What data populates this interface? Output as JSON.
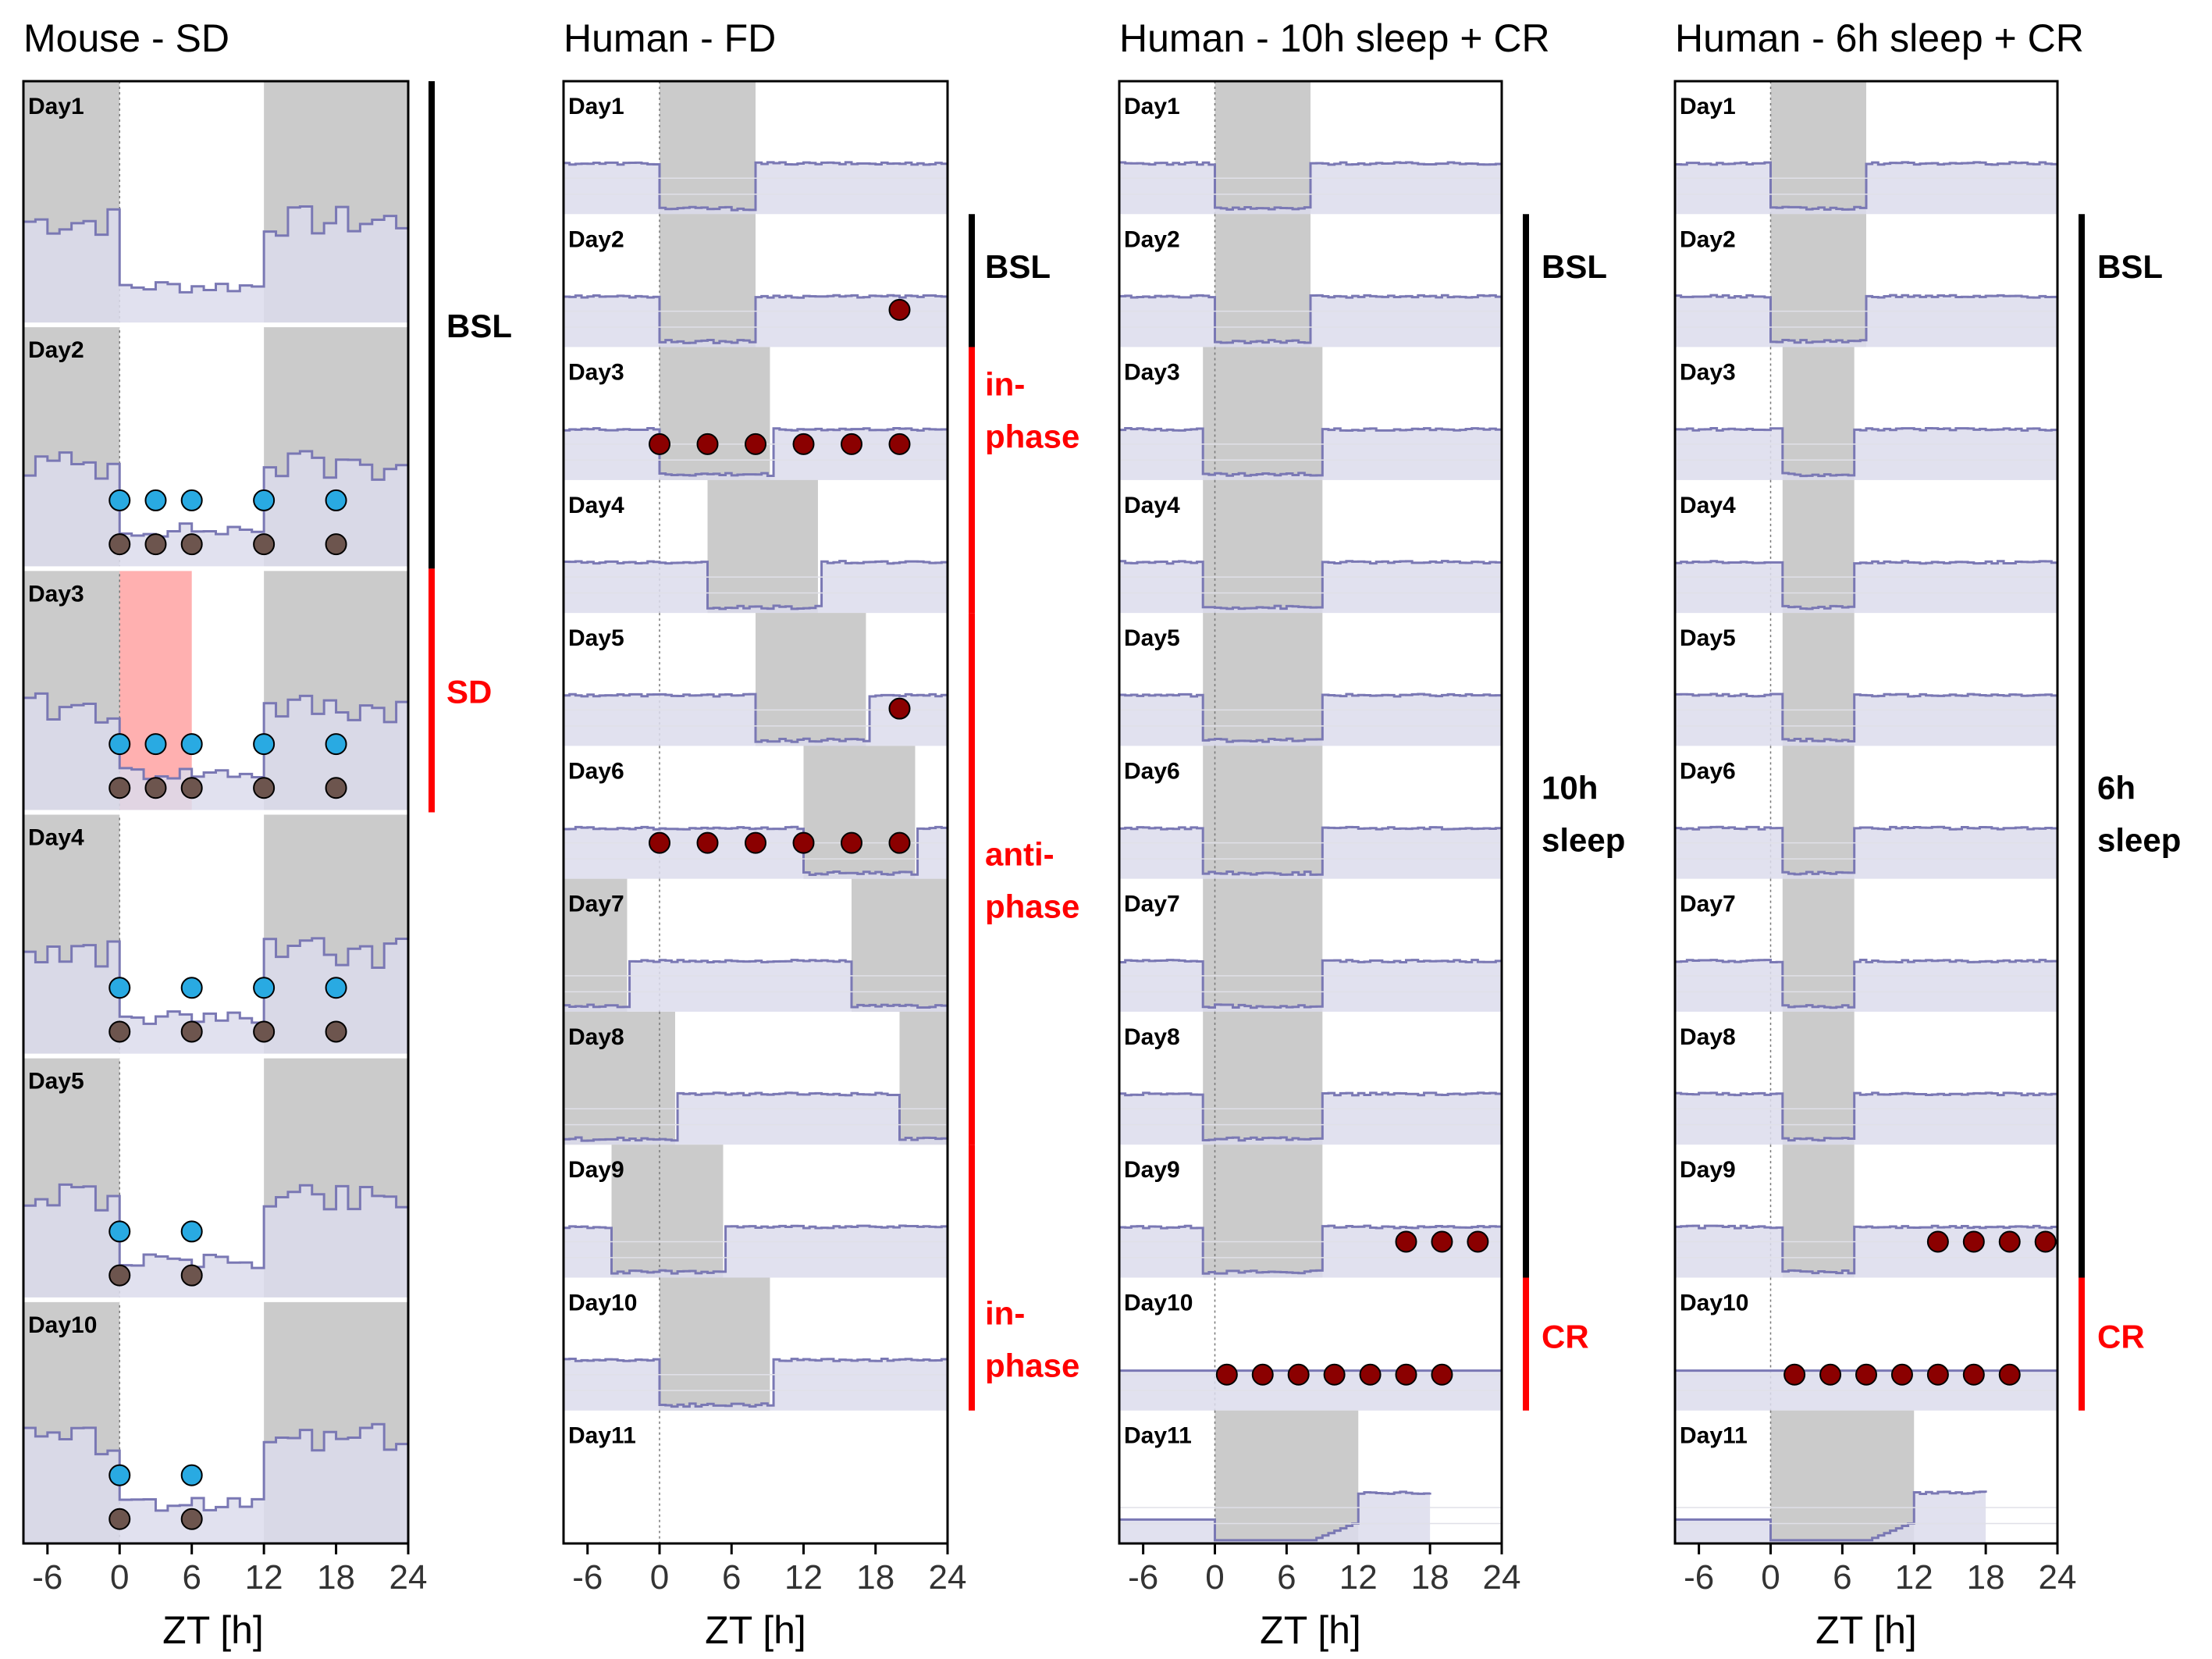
{
  "chart_data": [
    {
      "type": "area",
      "title": "Mouse - SD",
      "xlabel": "ZT [h]",
      "xlim": [
        -8,
        24
      ],
      "x_ticks": [
        "-6",
        "0",
        "6",
        "12",
        "18",
        "24"
      ],
      "rows": [
        {
          "label": "Day1",
          "shade": "[[-8,0],[12,24]]",
          "dots": {
            "blue": [],
            "brown": [],
            "red": []
          }
        },
        {
          "label": "Day2",
          "shade": "[[-8,0],[12,24]]",
          "dots": {
            "blue": [
              0,
              3,
              6,
              12,
              18
            ],
            "brown": [
              0,
              3,
              6,
              12,
              18
            ],
            "red": []
          }
        },
        {
          "label": "Day3",
          "shade": "[[-8,0],[12,24]]",
          "sd_window": [
            0,
            6
          ],
          "dots": {
            "blue": [
              0,
              3,
              6,
              12,
              18
            ],
            "brown": [
              0,
              3,
              6,
              12,
              18
            ],
            "red": []
          }
        },
        {
          "label": "Day4",
          "shade": "[[-8,0],[12,24]]",
          "dots": {
            "blue": [
              0,
              6,
              12,
              18
            ],
            "brown": [
              0,
              6,
              12,
              18
            ],
            "red": []
          }
        },
        {
          "label": "Day5",
          "shade": "[[-8,0],[12,24]]",
          "dots": {
            "blue": [
              0,
              6
            ],
            "brown": [
              0,
              6
            ],
            "red": []
          }
        },
        {
          "label": "Day10",
          "shade": "[[-8,0],[12,24]]",
          "dots": {
            "blue": [
              0,
              6
            ],
            "brown": [
              0,
              6
            ],
            "red": []
          }
        }
      ],
      "phases": [
        {
          "label": "BSL",
          "color": "#000000",
          "from_row": 0,
          "to_row": 2
        },
        {
          "label": "SD",
          "color": "#ff0000",
          "from_row": 2,
          "to_row": 3
        }
      ]
    },
    {
      "type": "area",
      "title": "Human - FD",
      "xlabel": "ZT [h]",
      "xlim": [
        -8,
        24
      ],
      "x_ticks": [
        "-6",
        "0",
        "6",
        "12",
        "18",
        "24"
      ],
      "rows": [
        {
          "label": "Day1",
          "shade": "[[0,8]]",
          "dots": {
            "blue": [],
            "brown": [],
            "red": []
          }
        },
        {
          "label": "Day2",
          "shade": "[[0,8]]",
          "dots": {
            "blue": [],
            "brown": [],
            "red": [
              20
            ]
          }
        },
        {
          "label": "Day3",
          "shade": "[[0,9.2]]",
          "dots": {
            "blue": [],
            "brown": [],
            "red": [
              0,
              4,
              8,
              12,
              16,
              20
            ]
          }
        },
        {
          "label": "Day4",
          "shade": "[[4,13.2]]",
          "dots": {
            "blue": [],
            "brown": [],
            "red": []
          }
        },
        {
          "label": "Day5",
          "shade": "[[8,17.2]]",
          "dots": {
            "blue": [],
            "brown": [],
            "red": [
              20
            ]
          }
        },
        {
          "label": "Day6",
          "shade": "[[12,21.3]]",
          "dots": {
            "blue": [],
            "brown": [],
            "red": [
              0,
              4,
              8,
              12,
              16,
              20
            ]
          }
        },
        {
          "label": "Day7",
          "shade": "[[-8,-2.7],[16,24]]",
          "dots": {
            "blue": [],
            "brown": [],
            "red": []
          }
        },
        {
          "label": "Day8",
          "shade": "[[-8,1.3],[20,24]]",
          "dots": {
            "blue": [],
            "brown": [],
            "red": []
          }
        },
        {
          "label": "Day9",
          "shade": "[[-4,5.3]]",
          "dots": {
            "blue": [],
            "brown": [],
            "red": []
          }
        },
        {
          "label": "Day10",
          "shade": "[[0,9.2]]",
          "dots": {
            "blue": [],
            "brown": [],
            "red": []
          }
        },
        {
          "label": "Day11",
          "shade": "[]",
          "dots": {
            "blue": [],
            "brown": [],
            "red": []
          }
        }
      ],
      "phases": [
        {
          "label": "BSL",
          "color": "#000000",
          "from_row": 1,
          "to_row": 2
        },
        {
          "label": "in-\nphase",
          "color": "#ff0000",
          "from_row": 2,
          "to_row": 4
        },
        {
          "label": "anti-\nphase",
          "color": "#ff0000",
          "from_row": 4,
          "to_row": 8
        },
        {
          "label": "in-\nphase",
          "color": "#ff0000",
          "from_row": 8,
          "to_row": 10
        }
      ]
    },
    {
      "type": "area",
      "title": "Human - 10h sleep + CR",
      "xlabel": "ZT [h]",
      "xlim": [
        -8,
        24
      ],
      "x_ticks": [
        "-6",
        "0",
        "6",
        "12",
        "18",
        "24"
      ],
      "rows": [
        {
          "label": "Day1",
          "shade": "[[0,8]]",
          "dots": {
            "blue": [],
            "brown": [],
            "red": []
          }
        },
        {
          "label": "Day2",
          "shade": "[[0,8]]",
          "dots": {
            "blue": [],
            "brown": [],
            "red": []
          }
        },
        {
          "label": "Day3",
          "shade": "[[-1,9]]",
          "dots": {
            "blue": [],
            "brown": [],
            "red": []
          }
        },
        {
          "label": "Day4",
          "shade": "[[-1,9]]",
          "dots": {
            "blue": [],
            "brown": [],
            "red": []
          }
        },
        {
          "label": "Day5",
          "shade": "[[-1,9]]",
          "dots": {
            "blue": [],
            "brown": [],
            "red": []
          }
        },
        {
          "label": "Day6",
          "shade": "[[-1,9]]",
          "dots": {
            "blue": [],
            "brown": [],
            "red": []
          }
        },
        {
          "label": "Day7",
          "shade": "[[-1,9]]",
          "dots": {
            "blue": [],
            "brown": [],
            "red": []
          }
        },
        {
          "label": "Day8",
          "shade": "[[-1,9]]",
          "dots": {
            "blue": [],
            "brown": [],
            "red": []
          }
        },
        {
          "label": "Day9",
          "shade": "[[-1,9]]",
          "dots": {
            "blue": [],
            "brown": [],
            "red": [
              16,
              19,
              22
            ]
          }
        },
        {
          "label": "Day10",
          "shade": "[]",
          "dots": {
            "blue": [],
            "brown": [],
            "red": [
              1,
              4,
              7,
              10,
              13,
              16,
              19
            ]
          }
        },
        {
          "label": "Day11",
          "shade": "[[0,12]]",
          "dots": {
            "blue": [],
            "brown": [],
            "red": []
          }
        }
      ],
      "phases": [
        {
          "label": "BSL",
          "color": "#000000",
          "from_row": 1,
          "to_row": 2
        },
        {
          "label": "10h\nsleep",
          "color": "#000000",
          "from_row": 2,
          "to_row": 9
        },
        {
          "label": "CR",
          "color": "#ff0000",
          "from_row": 9,
          "to_row": 10
        }
      ]
    },
    {
      "type": "area",
      "title": "Human - 6h sleep + CR",
      "xlabel": "ZT [h]",
      "xlim": [
        -8,
        24
      ],
      "x_ticks": [
        "-6",
        "0",
        "6",
        "12",
        "18",
        "24"
      ],
      "rows": [
        {
          "label": "Day1",
          "shade": "[[0,8]]",
          "dots": {
            "blue": [],
            "brown": [],
            "red": []
          }
        },
        {
          "label": "Day2",
          "shade": "[[0,8]]",
          "dots": {
            "blue": [],
            "brown": [],
            "red": []
          }
        },
        {
          "label": "Day3",
          "shade": "[[1,7]]",
          "dots": {
            "blue": [],
            "brown": [],
            "red": []
          }
        },
        {
          "label": "Day4",
          "shade": "[[1,7]]",
          "dots": {
            "blue": [],
            "brown": [],
            "red": []
          }
        },
        {
          "label": "Day5",
          "shade": "[[1,7]]",
          "dots": {
            "blue": [],
            "brown": [],
            "red": []
          }
        },
        {
          "label": "Day6",
          "shade": "[[1,7]]",
          "dots": {
            "blue": [],
            "brown": [],
            "red": []
          }
        },
        {
          "label": "Day7",
          "shade": "[[1,7]]",
          "dots": {
            "blue": [],
            "brown": [],
            "red": []
          }
        },
        {
          "label": "Day8",
          "shade": "[[1,7]]",
          "dots": {
            "blue": [],
            "brown": [],
            "red": []
          }
        },
        {
          "label": "Day9",
          "shade": "[[1,7]]",
          "dots": {
            "blue": [],
            "brown": [],
            "red": [
              14,
              17,
              20,
              23
            ]
          }
        },
        {
          "label": "Day10",
          "shade": "[]",
          "dots": {
            "blue": [],
            "brown": [],
            "red": [
              2,
              5,
              8,
              11,
              14,
              17,
              20
            ]
          }
        },
        {
          "label": "Day11",
          "shade": "[[0,12]]",
          "dots": {
            "blue": [],
            "brown": [],
            "red": []
          }
        }
      ],
      "phases": [
        {
          "label": "BSL",
          "color": "#000000",
          "from_row": 1,
          "to_row": 2
        },
        {
          "label": "6h\nsleep",
          "color": "#000000",
          "from_row": 2,
          "to_row": 9
        },
        {
          "label": "CR",
          "color": "#ff0000",
          "from_row": 9,
          "to_row": 10
        }
      ]
    }
  ],
  "colors": {
    "shade": "#cbcbcb",
    "trace_fill": "#dcdcec",
    "trace_line": "#7a78b4",
    "dot_blue": "#29aae2",
    "dot_brown": "#6d554e",
    "dot_red": "#8b0000",
    "sd_window": "#ffb0b0",
    "phase_red": "#ff0000",
    "phase_black": "#000000"
  }
}
